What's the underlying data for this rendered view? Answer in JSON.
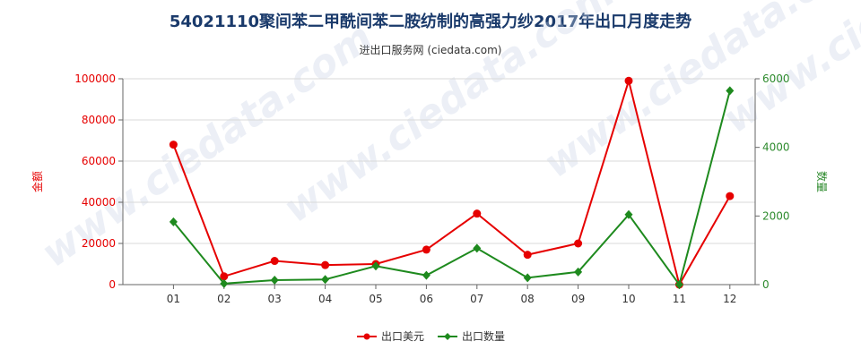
{
  "title": "54021110聚间苯二甲酰间苯二胺纺制的高强力纱2017年出口月度走势",
  "subtitle": "进出口服务网 (ciedata.com)",
  "watermark": "www.ciedata.com",
  "chart_data": {
    "type": "line",
    "categories": [
      "01",
      "02",
      "03",
      "04",
      "05",
      "06",
      "07",
      "08",
      "09",
      "10",
      "11",
      "12"
    ],
    "y_left": {
      "label": "金额",
      "ylim": [
        0,
        100000
      ],
      "ticks": [
        "0",
        "20000",
        "40000",
        "60000",
        "80000",
        "100000"
      ],
      "color": "#e60000"
    },
    "y_right": {
      "label": "数量",
      "ylim": [
        0,
        6000
      ],
      "ticks": [
        "0",
        "2000",
        "4000",
        "6000"
      ],
      "color": "#2e8b2e"
    },
    "series": [
      {
        "name": "出口美元",
        "axis": "left",
        "color": "#e60000",
        "marker": "circle",
        "values": [
          68000,
          4000,
          11500,
          9500,
          10000,
          17000,
          34500,
          14500,
          20000,
          99000,
          0,
          43000
        ]
      },
      {
        "name": "出口数量",
        "axis": "right",
        "color": "#1e8a1e",
        "marker": "diamond",
        "values": [
          1830,
          30,
          130,
          150,
          540,
          270,
          1060,
          200,
          370,
          2040,
          0,
          5650
        ]
      }
    ],
    "grid": true,
    "legend_position": "bottom-center"
  }
}
